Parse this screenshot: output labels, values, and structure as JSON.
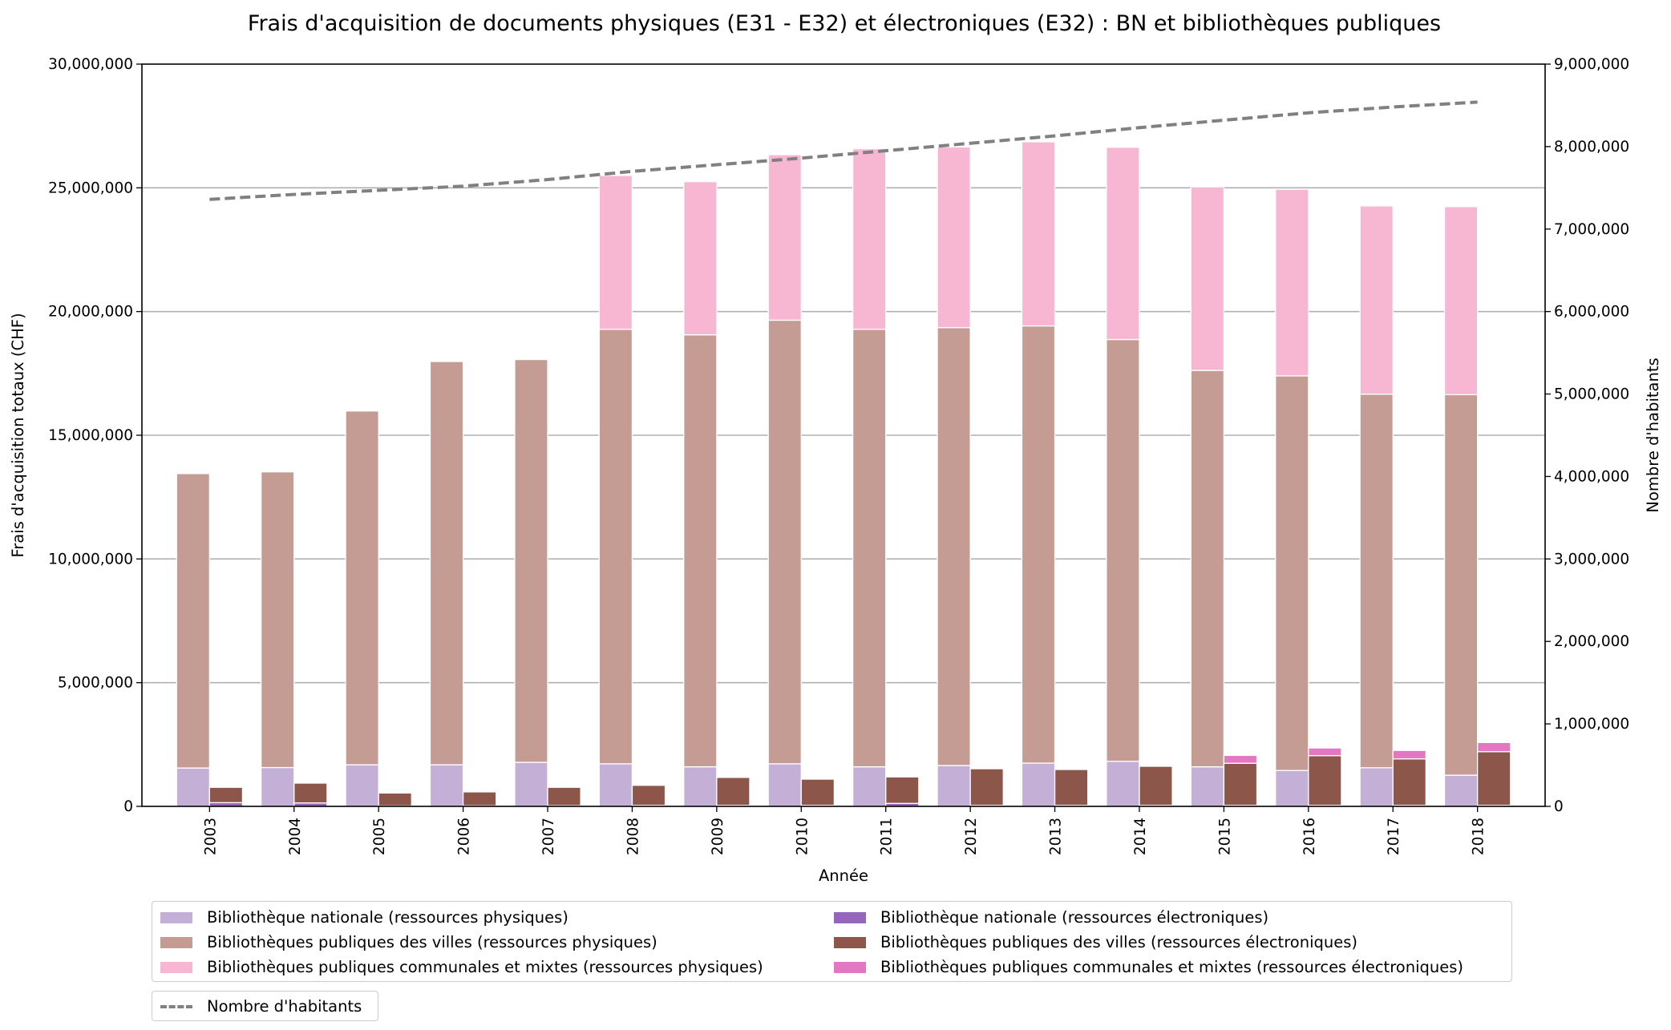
{
  "chart_data": {
    "type": "bar",
    "title": "Frais d'acquisition de documents physiques (E31 - E32) et électroniques (E32) : BN et bibliothèques publiques",
    "xlabel": "Année",
    "ylabel": "Frais d'acquisition totaux (CHF)",
    "y2label": "Nombre d'habitants",
    "ylim": [
      0,
      30000000
    ],
    "y2lim": [
      0,
      9000000
    ],
    "yticks": [
      "0",
      "5,000,000",
      "10,000,000",
      "15,000,000",
      "20,000,000",
      "25,000,000",
      "30,000,000"
    ],
    "y2ticks": [
      "0",
      "1,000,000",
      "2,000,000",
      "3,000,000",
      "4,000,000",
      "5,000,000",
      "6,000,000",
      "7,000,000",
      "8,000,000",
      "9,000,000"
    ],
    "grid": "horizontal",
    "categories": [
      "2003",
      "2004",
      "2005",
      "2006",
      "2007",
      "2008",
      "2009",
      "2010",
      "2011",
      "2012",
      "2013",
      "2014",
      "2015",
      "2016",
      "2017",
      "2018"
    ],
    "series": [
      {
        "name": "Bibliothèque nationale (ressources physiques)",
        "stack": "physiques",
        "color": "#c4b0d6",
        "values": [
          1550000,
          1570000,
          1680000,
          1680000,
          1780000,
          1720000,
          1600000,
          1720000,
          1600000,
          1650000,
          1750000,
          1820000,
          1600000,
          1450000,
          1560000,
          1260000
        ]
      },
      {
        "name": "Bibliothèques publiques des villes (ressources physiques)",
        "stack": "physiques",
        "color": "#c49c94",
        "values": [
          11900000,
          11950000,
          14300000,
          16300000,
          16280000,
          17560000,
          17460000,
          17930000,
          17680000,
          17700000,
          17670000,
          17050000,
          16020000,
          15950000,
          15100000,
          15380000
        ]
      },
      {
        "name": "Bibliothèques publiques communales et mixtes (ressources physiques)",
        "stack": "physiques",
        "color": "#f7b6d2",
        "values": [
          0,
          0,
          0,
          0,
          0,
          6220000,
          6190000,
          6690000,
          7300000,
          7300000,
          7440000,
          7770000,
          7420000,
          7540000,
          7610000,
          7600000
        ]
      },
      {
        "name": "Bibliothèque nationale (ressources électroniques)",
        "stack": "electroniques",
        "color": "#9467bd",
        "values": [
          150000,
          140000,
          20000,
          25000,
          30000,
          40000,
          40000,
          40000,
          120000,
          40000,
          40000,
          40000,
          40000,
          40000,
          40000,
          40000
        ]
      },
      {
        "name": "Bibliothèques publiques des villes (ressources électroniques)",
        "stack": "electroniques",
        "color": "#8c564b",
        "values": [
          620000,
          800000,
          520000,
          560000,
          740000,
          810000,
          1130000,
          1060000,
          1070000,
          1480000,
          1450000,
          1580000,
          1700000,
          2010000,
          1880000,
          2170000
        ]
      },
      {
        "name": "Bibliothèques publiques communales et mixtes (ressources électroniques)",
        "stack": "electroniques",
        "color": "#e377c2",
        "values": [
          0,
          0,
          0,
          0,
          0,
          0,
          0,
          0,
          0,
          0,
          0,
          0,
          320000,
          310000,
          340000,
          370000
        ]
      }
    ],
    "line": {
      "name": "Nombre d'habitants",
      "axis": "right",
      "color": "#808080",
      "style": "dashed",
      "values": [
        7360000,
        7420000,
        7470000,
        7520000,
        7600000,
        7700000,
        7780000,
        7860000,
        7950000,
        8040000,
        8130000,
        8230000,
        8320000,
        8410000,
        8480000,
        8540000
      ]
    },
    "legend": "bottom"
  }
}
